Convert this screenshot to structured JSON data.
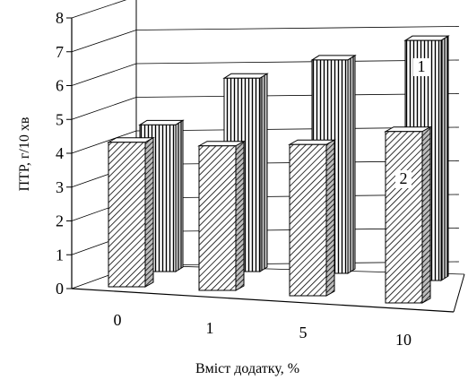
{
  "chart_data": {
    "type": "bar",
    "categories": [
      "0",
      "1",
      "5",
      "10"
    ],
    "series": [
      {
        "name": "1",
        "values": [
          4.4,
          5.8,
          6.4,
          7.2
        ]
      },
      {
        "name": "2",
        "values": [
          4.3,
          4.3,
          4.5,
          5.1
        ]
      }
    ],
    "xlabel": "Вміст додатку, %",
    "ylabel": "ПТР, г/10 хв",
    "ylim": [
      0,
      8
    ],
    "yticks": [
      "0",
      "1",
      "2",
      "3",
      "4",
      "5",
      "6",
      "7",
      "8"
    ],
    "grid": true,
    "legend": "series numbers labelled on the back bars (1) and front bars (2)"
  }
}
